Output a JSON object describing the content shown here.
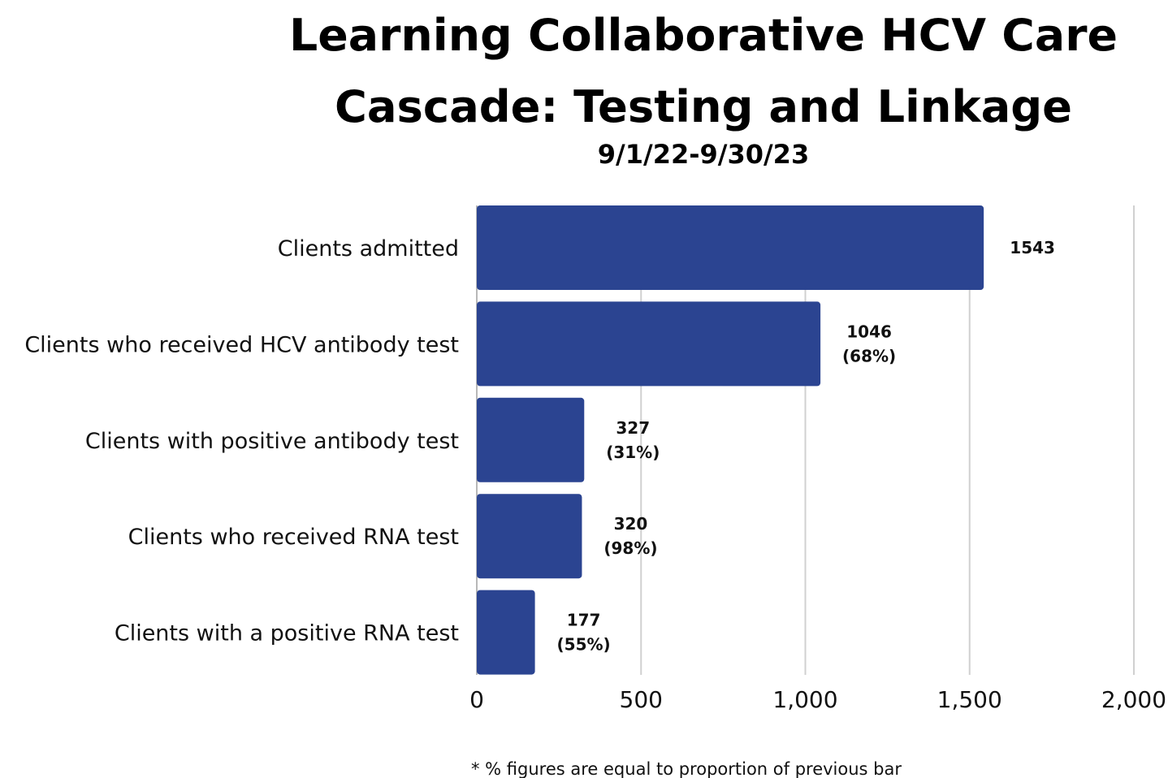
{
  "chart_data": {
    "type": "bar",
    "orientation": "horizontal",
    "title_lines": [
      "Learning Collaborative HCV Care",
      "Cascade: Testing and Linkage"
    ],
    "subtitle": "9/1/22-9/30/23",
    "categories": [
      "Clients admitted",
      "Clients who received HCV antibody test",
      "Clients with positive antibody test",
      "Clients who received RNA test",
      "Clients with a positive RNA test"
    ],
    "values": [
      1543,
      1046,
      327,
      320,
      177
    ],
    "data_labels": [
      [
        "1543"
      ],
      [
        "1046",
        "(68%)"
      ],
      [
        "327",
        "(31%)"
      ],
      [
        "320",
        "(98%)"
      ],
      [
        "177",
        "(55%)"
      ]
    ],
    "xlim": [
      0,
      2000
    ],
    "x_ticks": [
      0,
      500,
      1000,
      1500,
      2000
    ],
    "x_tick_labels": [
      "0",
      "500",
      "1,000",
      "1,500",
      "2,000"
    ],
    "grid": "vertical",
    "bar_color": "#2b4491",
    "grid_color": "#d0d0d0",
    "footnote": "* % figures are equal to proportion of previous bar"
  }
}
